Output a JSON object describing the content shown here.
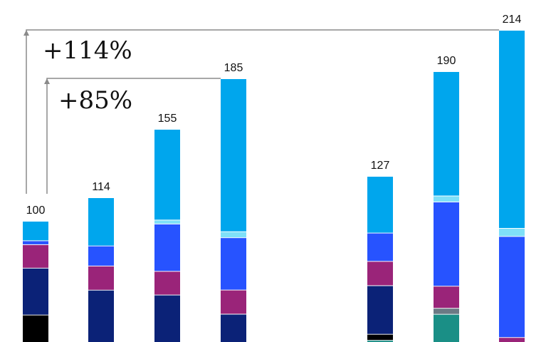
{
  "chart_data": {
    "type": "bar",
    "stacked": true,
    "title": "",
    "xlabel": "",
    "ylabel": "",
    "categories": [
      "",
      "",
      "",
      "",
      "",
      "",
      ""
    ],
    "totals": [
      "100",
      "114",
      "155",
      "185",
      "127",
      "190",
      "214"
    ],
    "total_values": [
      100,
      114,
      155,
      185,
      127,
      190,
      214
    ],
    "segments": [
      [
        {
          "value": 7,
          "color": "#000000"
        },
        {
          "value": 12,
          "color": "#0b2277"
        },
        {
          "value": 6,
          "color": "#9a2479"
        },
        {
          "value": 1,
          "color": "#2753ff"
        },
        {
          "value": 5,
          "color": "#00a6ed"
        }
      ],
      [
        {
          "value": 13,
          "color": "#0b2277"
        },
        {
          "value": 6,
          "color": "#9a2479"
        },
        {
          "value": 5,
          "color": "#2753ff"
        },
        {
          "value": 12,
          "color": "#00a6ed"
        }
      ],
      [
        {
          "value": 12,
          "color": "#0b2277"
        },
        {
          "value": 6,
          "color": "#9a2479"
        },
        {
          "value": 12,
          "color": "#2753ff"
        },
        {
          "value": 1,
          "color": "#7fe0f8"
        },
        {
          "value": 23,
          "color": "#00a6ed"
        }
      ],
      [
        {
          "value": 7,
          "color": "#0b2277"
        },
        {
          "value": 6,
          "color": "#9a2479"
        },
        {
          "value": 13,
          "color": "#2753ff"
        },
        {
          "value": 1.5,
          "color": "#7fe0f8"
        },
        {
          "value": 38,
          "color": "#00a6ed"
        }
      ],
      [
        {
          "value": 0.5,
          "color": "#1a8f86"
        },
        {
          "value": 1.5,
          "color": "#000000"
        },
        {
          "value": 12,
          "color": "#0b2277"
        },
        {
          "value": 6,
          "color": "#9a2479"
        },
        {
          "value": 7,
          "color": "#2753ff"
        },
        {
          "value": 14,
          "color": "#00a6ed"
        }
      ],
      [
        {
          "value": 7,
          "color": "#1a8f86"
        },
        {
          "value": 1.5,
          "color": "#6b7a85"
        },
        {
          "value": 5.5,
          "color": "#9a2479"
        },
        {
          "value": 21,
          "color": "#2753ff"
        },
        {
          "value": 1.5,
          "color": "#7fe0f8"
        },
        {
          "value": 31,
          "color": "#00a6ed"
        }
      ],
      [
        {
          "value": 1.2,
          "color": "#9a2479"
        },
        {
          "value": 25,
          "color": "#2753ff"
        },
        {
          "value": 2,
          "color": "#7fe0f8"
        },
        {
          "value": 49,
          "color": "#00a6ed"
        }
      ]
    ],
    "annotations": [
      {
        "text": "+114%",
        "from_bar": 0,
        "to_bar": 6
      },
      {
        "text": "+85%",
        "from_bar": 0,
        "to_bar": 3
      }
    ],
    "colors": {
      "bracket": "#8a8a8a",
      "black": "#000000",
      "navy": "#0b2277",
      "magenta": "#9a2479",
      "blue": "#2753ff",
      "light_cyan": "#7fe0f8",
      "sky": "#00a6ed",
      "teal": "#1a8f86",
      "gray": "#6b7a85"
    }
  }
}
